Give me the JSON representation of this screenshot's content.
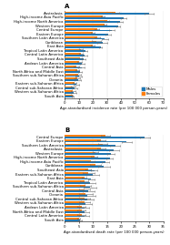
{
  "chart_data": [
    {
      "type": "bar",
      "orientation": "horizontal",
      "title": "A",
      "xlabel": "Age-standardised incidence rate (per 100 000 person-years)",
      "xlim": [
        0,
        70
      ],
      "xticks": [
        0,
        10,
        20,
        30,
        40,
        50,
        60,
        70
      ],
      "grid": true,
      "legend": "lower right",
      "categories": [
        "Australasia",
        "High-income Asia Pacific",
        "High-income North America",
        "Western Europe",
        "Central Europe",
        "Eastern Europe",
        "Southern Latin America",
        "Caribbean",
        "East Asia",
        "Tropical Latin America",
        "Central Latin America",
        "Southeast Asia",
        "Andean Latin America",
        "Central Asia",
        "North Africa and Middle East",
        "Southern sub-Saharan Africa",
        "Oceania",
        "Eastern sub-Saharan Africa",
        "Central sub-Saharan Africa",
        "Western sub-Saharan Africa",
        "South Asia"
      ],
      "series": [
        {
          "name": "Males",
          "values": [
            60.0,
            42.0,
            39.5,
            38.0,
            33.5,
            31.0,
            28.5,
            27.0,
            25.5,
            14.5,
            14.0,
            13.5,
            12.5,
            12.0,
            11.0,
            10.0,
            9.5,
            8.5,
            7.0,
            6.5,
            6.0
          ],
          "error": [
            3.0,
            2.0,
            1.8,
            1.2,
            1.8,
            1.8,
            2.2,
            3.5,
            1.2,
            1.8,
            1.8,
            1.2,
            1.8,
            2.2,
            1.2,
            2.2,
            2.2,
            1.8,
            1.8,
            1.8,
            0.6
          ]
        },
        {
          "name": "Females",
          "values": [
            36.0,
            27.0,
            30.0,
            28.5,
            23.0,
            20.0,
            23.0,
            22.5,
            20.0,
            11.5,
            11.5,
            11.0,
            10.5,
            8.5,
            9.0,
            9.5,
            9.0,
            7.0,
            6.0,
            6.0,
            5.5
          ],
          "error": [
            2.5,
            1.5,
            1.5,
            1.0,
            1.5,
            1.5,
            2.0,
            3.0,
            1.0,
            1.5,
            1.5,
            1.0,
            1.5,
            2.0,
            1.0,
            2.0,
            2.0,
            1.5,
            1.5,
            1.5,
            0.5
          ]
        }
      ]
    },
    {
      "type": "bar",
      "orientation": "horizontal",
      "title": "B",
      "xlabel": "Age-standardised death rate (per 100 000 person-years)",
      "xlim": [
        0,
        35
      ],
      "xticks": [
        0,
        5,
        10,
        15,
        20,
        25,
        30,
        35
      ],
      "grid": true,
      "categories": [
        "Central Europe",
        "Eastern Europe",
        "Southern Latin America",
        "Australasia",
        "Western Europe",
        "High-income North America",
        "High-income Asia Pacific",
        "Caribbean",
        "Southeast Asia",
        "Eastern sub-Saharan Africa",
        "East Asia",
        "Tropical Latin America",
        "Southern sub-Saharan Africa",
        "Central Asia",
        "Oceania",
        "Central sub-Saharan Africa",
        "Western sub-Saharan Africa",
        "Andean Latin America",
        "North Africa and Middle East",
        "Central Latin America",
        "South Asia"
      ],
      "series": [
        {
          "name": "Males",
          "values": [
            28.5,
            22.0,
            18.0,
            17.5,
            16.5,
            16.0,
            14.5,
            14.0,
            10.5,
            10.0,
            9.5,
            9.0,
            9.0,
            8.5,
            8.0,
            8.0,
            7.5,
            7.0,
            7.0,
            7.0,
            5.5
          ],
          "error": [
            1.8,
            1.8,
            1.8,
            1.8,
            1.2,
            1.2,
            1.2,
            2.2,
            1.2,
            2.2,
            1.0,
            1.8,
            2.2,
            2.2,
            2.8,
            2.2,
            2.2,
            1.8,
            1.8,
            1.8,
            0.6
          ]
        },
        {
          "name": "Females",
          "values": [
            14.5,
            13.0,
            13.5,
            13.0,
            11.0,
            10.5,
            9.5,
            11.0,
            8.5,
            8.5,
            7.0,
            7.0,
            7.5,
            7.0,
            7.5,
            7.0,
            7.0,
            6.0,
            6.0,
            6.0,
            5.0
          ],
          "error": [
            1.5,
            1.5,
            1.5,
            1.5,
            1.0,
            1.0,
            1.0,
            2.0,
            1.0,
            2.0,
            0.8,
            1.5,
            2.0,
            2.0,
            2.5,
            2.0,
            2.0,
            1.5,
            1.5,
            1.5,
            0.5
          ]
        }
      ]
    }
  ]
}
